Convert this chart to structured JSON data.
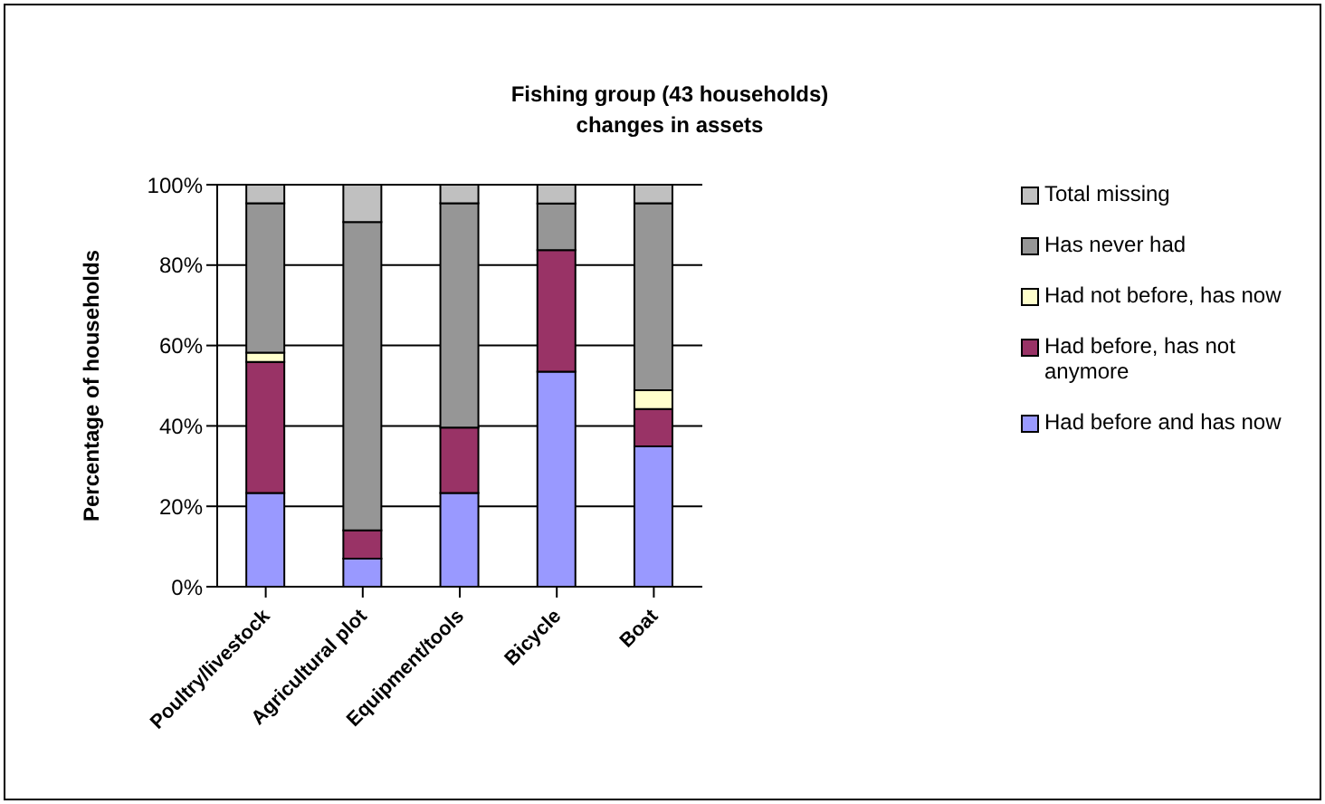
{
  "chart_data": {
    "type": "bar",
    "title": "Fishing group (43 households)\nchanges in assets",
    "ylabel": "Percentage of households",
    "categories": [
      "Poultry/livestock",
      "Agricultural plot",
      "Equipment/tools",
      "Bicycle",
      "Boat"
    ],
    "stacked": true,
    "series": [
      {
        "name": "Had before and has now",
        "color": "#9999ff",
        "values": [
          23.3,
          7.0,
          23.3,
          53.5,
          34.9
        ]
      },
      {
        "name": "Had before, has not anymore",
        "color": "#993366",
        "values": [
          32.6,
          7.0,
          16.3,
          30.2,
          9.3
        ]
      },
      {
        "name": "Had not before, has now",
        "color": "#ffffcc",
        "values": [
          2.3,
          0,
          0,
          0,
          4.7
        ]
      },
      {
        "name": "Has never had",
        "color": "#969696",
        "values": [
          37.2,
          76.7,
          55.8,
          11.6,
          46.5
        ]
      },
      {
        "name": "Total missing",
        "color": "#c0c0c0",
        "values": [
          4.7,
          9.3,
          4.7,
          4.7,
          4.7
        ]
      }
    ],
    "ylim": [
      0,
      100
    ],
    "yticks": [
      {
        "value": 0,
        "label": "0%"
      },
      {
        "value": 20,
        "label": "20%"
      },
      {
        "value": 40,
        "label": "40%"
      },
      {
        "value": 60,
        "label": "60%"
      },
      {
        "value": 80,
        "label": "80%"
      },
      {
        "value": 100,
        "label": "100%"
      }
    ],
    "grid": "y",
    "legend": "right"
  }
}
